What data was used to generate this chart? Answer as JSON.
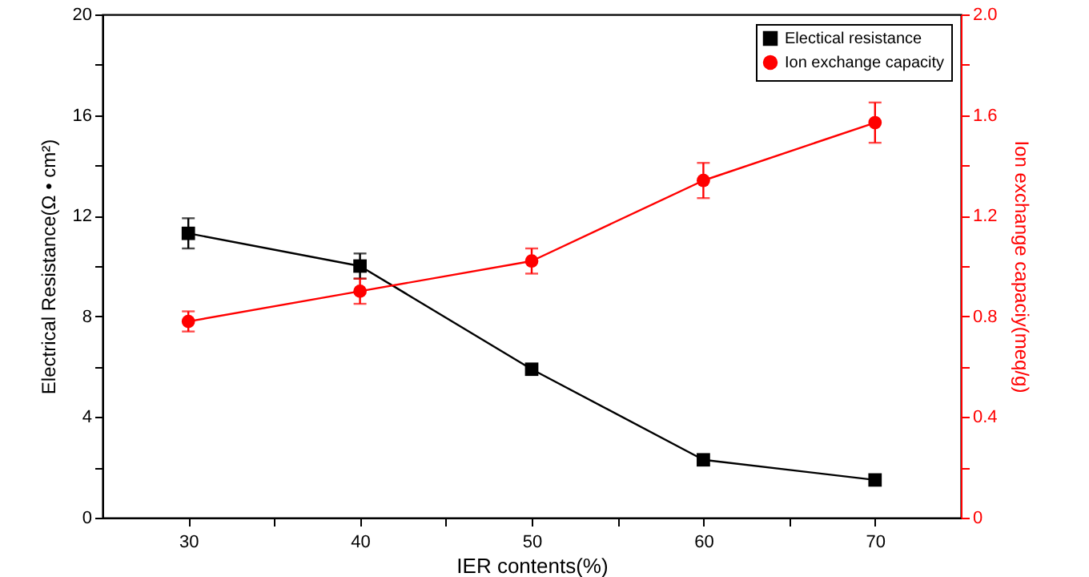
{
  "chart_data": {
    "type": "line",
    "xlabel": "IER contents(%)",
    "ylabel": "Electrical Resistance(Ω • cm²)",
    "y2label": "Ion exchange capaciy(meq/g)",
    "x": [
      30,
      40,
      50,
      60,
      70
    ],
    "xlim": [
      25,
      75
    ],
    "xticks": [
      30,
      {
        "value": 35,
        "label": null
      },
      40,
      {
        "value": 45,
        "label": null
      },
      50,
      {
        "value": 55,
        "label": null
      },
      60,
      {
        "value": 65,
        "label": null
      },
      70
    ],
    "ylim": [
      0,
      20
    ],
    "yticks": [
      0,
      {
        "value": 2,
        "label": null
      },
      4,
      {
        "value": 6,
        "label": null
      },
      8,
      {
        "value": 10,
        "label": null
      },
      12,
      {
        "value": 14,
        "label": null
      },
      16,
      {
        "value": 18,
        "label": null
      },
      20
    ],
    "y2lim": [
      0,
      2
    ],
    "y2ticks": [
      0,
      {
        "value": 0.2,
        "label": null
      },
      0.4,
      {
        "value": 0.6,
        "label": null
      },
      0.8,
      {
        "value": 1,
        "label": null
      },
      1.2,
      {
        "value": 1.4,
        "label": null
      },
      1.6,
      {
        "value": 1.8,
        "label": null
      },
      {
        "value": 2,
        "label": "2.0"
      }
    ],
    "series": [
      {
        "name": "Electical resistance",
        "color": "#000000",
        "marker": "square",
        "values": [
          11.3,
          10.0,
          5.9,
          2.3,
          1.5
        ],
        "errors": [
          0.6,
          0.5,
          0.2,
          null,
          null
        ]
      },
      {
        "name": "Ion exchange capacity",
        "color": "#ff0000",
        "marker": "circle",
        "axis": "y2",
        "values": [
          0.78,
          0.9,
          1.02,
          1.34,
          1.57
        ],
        "errors": [
          0.04,
          0.05,
          0.05,
          0.07,
          0.08
        ]
      }
    ],
    "legend": "top right",
    "grid": false
  }
}
